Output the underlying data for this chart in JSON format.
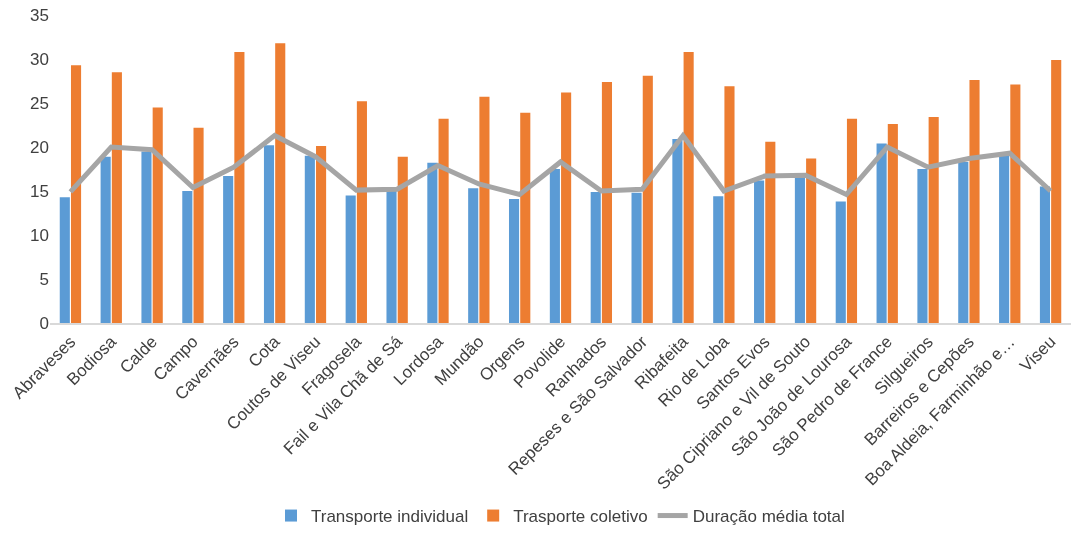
{
  "chart_data": {
    "type": "bar",
    "categories": [
      "Abraveses",
      "Bodiosa",
      "Calde",
      "Campo",
      "Cavernães",
      "Cota",
      "Coutos de Viseu",
      "Fragosela",
      "Fail e Vila Chã de Sá",
      "Lordosa",
      "Mundão",
      "Orgens",
      "Povolide",
      "Ranhados",
      "Repeses e São Salvador",
      "Ribafeita",
      "Rio de Loba",
      "Santos Evos",
      "São Cipriano e Vil de Souto",
      "São João de Lourosa",
      "São Pedro de France",
      "Silgueiros",
      "Barreiros e Cepões",
      "Boa Aldeia, Farminhão e…",
      "Viseu"
    ],
    "series": [
      {
        "name": "Transporte individual",
        "color": "#5b9bd5",
        "values": [
          14.3,
          18.9,
          19.5,
          15,
          16.7,
          20.2,
          19,
          14.5,
          15,
          18.2,
          15.3,
          14.1,
          17.5,
          14.9,
          14.8,
          20.9,
          14.4,
          16.2,
          16.5,
          13.8,
          20.4,
          17.5,
          18.3,
          19.2,
          15.5
        ]
      },
      {
        "name": "Trasporte coletivo",
        "color": "#ed7d31",
        "values": [
          29.3,
          28.5,
          24.5,
          22.2,
          30.8,
          31.8,
          20.1,
          25.2,
          18.9,
          23.2,
          25.7,
          23.9,
          26.2,
          27.4,
          28.1,
          30.8,
          26.9,
          20.6,
          18.7,
          23.2,
          22.6,
          23.4,
          27.6,
          27.1,
          29.9
        ]
      },
      {
        "name": "Duração média total",
        "color": "#a5a5a5",
        "type": "line",
        "values": [
          14.9,
          20,
          19.7,
          15.4,
          17.7,
          21.3,
          18.9,
          15.1,
          15.2,
          17.9,
          15.8,
          14.6,
          18.3,
          15,
          15.2,
          21.3,
          15,
          16.7,
          16.8,
          14.6,
          20,
          17.7,
          18.7,
          19.3,
          15
        ]
      }
    ],
    "ylim": [
      0,
      35
    ],
    "yticks": [
      0,
      5,
      10,
      15,
      20,
      25,
      30,
      35
    ],
    "grid": false,
    "legend": "bottom",
    "marker": "none",
    "line_style": "solid"
  }
}
